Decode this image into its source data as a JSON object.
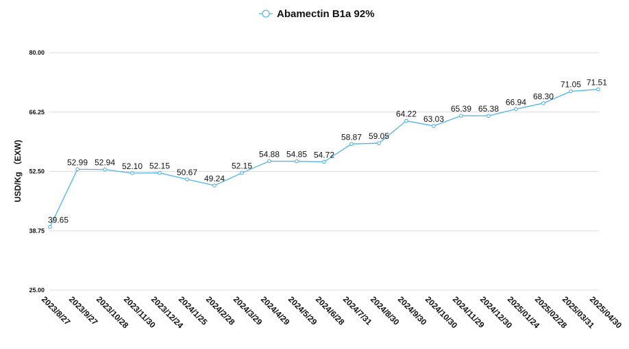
{
  "chart_data": {
    "type": "line",
    "title": "",
    "xlabel": "",
    "ylabel": "USD/Kg （EXW)",
    "ylim": [
      25,
      80
    ],
    "yticks": [
      "25.00",
      "38.75",
      "52.50",
      "66.25",
      "80.00"
    ],
    "grid": true,
    "legend_position": "top-center",
    "line_color": "#4fb3e6",
    "categories": [
      "2023/8/27",
      "2023/9/27",
      "2023/10/28",
      "2023/11/30",
      "2023/12/24",
      "2024/1/25",
      "2024/2/28",
      "2024/3/29",
      "2024/4/29",
      "2024/5/29",
      "2024/6/28",
      "2024/7/31",
      "2024/8/30",
      "2024/9/30",
      "2024/10/30",
      "2024/11/29",
      "2024/12/30",
      "2025/01/24",
      "2025/02/28",
      "2025/03/31",
      "2025/04/30"
    ],
    "series": [
      {
        "name": "Abamectin B1a 92%",
        "values": [
          39.65,
          52.99,
          52.94,
          52.1,
          52.15,
          50.67,
          49.24,
          52.15,
          54.88,
          54.85,
          54.72,
          58.87,
          59.05,
          64.22,
          63.03,
          65.39,
          65.38,
          66.94,
          68.3,
          71.05,
          71.51
        ],
        "labels": [
          "39.65",
          "52.99",
          "52.94",
          "52.10",
          "52.15",
          "50.67",
          "49.24",
          "52.15",
          "54.88",
          "54.85",
          "54.72",
          "58.87",
          "59.05",
          "64.22",
          "63.03",
          "65.39",
          "65.38",
          "66.94",
          "68.30",
          "71.05",
          "71.51"
        ]
      }
    ]
  }
}
